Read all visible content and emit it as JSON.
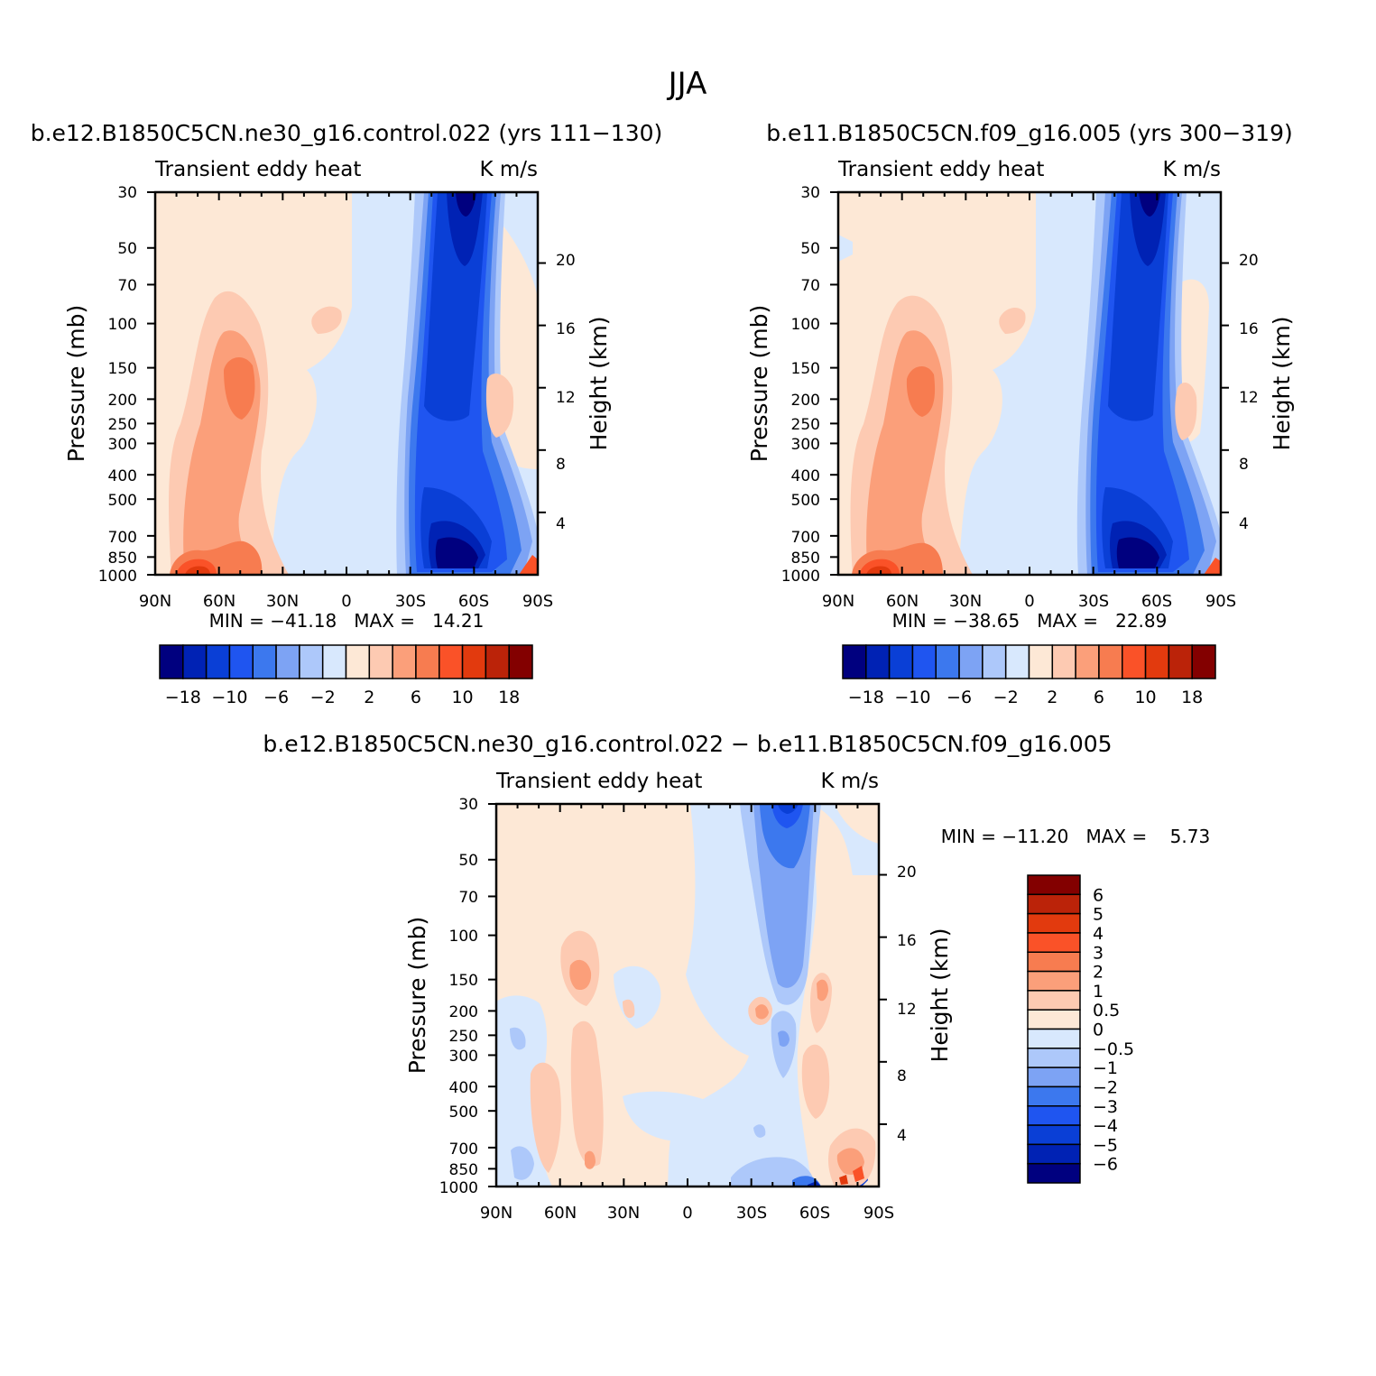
{
  "figure": {
    "title": "JJA"
  },
  "chart_data": [
    {
      "type": "heatmap",
      "title": "b.e12.B1850C5CN.ne30_g16.control.022 (yrs 111-130)",
      "subtitle_left": "Transient eddy heat",
      "subtitle_right": "K m/s",
      "xlabel": "",
      "ylabel": "Pressure (mb)",
      "ylabel_right": "Height (km)",
      "x_ticks": [
        "90N",
        "60N",
        "30N",
        "0",
        "30S",
        "60S",
        "90S"
      ],
      "y_ticks": [
        "30",
        "50",
        "70",
        "100",
        "150",
        "200",
        "250",
        "300",
        "400",
        "500",
        "700",
        "850",
        "1000"
      ],
      "y2_ticks": [
        "4",
        "8",
        "12",
        "16",
        "20"
      ],
      "min_max_text": "MIN = -41.18   MAX =   14.21",
      "min": -41.18,
      "max": 14.21,
      "colorbar_labels": [
        "-18",
        "-10",
        "-6",
        "-2",
        "2",
        "6",
        "10",
        "18"
      ],
      "colorbar_colors": [
        "#00007f",
        "#0022b4",
        "#0a3fd6",
        "#1f55f0",
        "#3c78ee",
        "#7da3f4",
        "#adc8fa",
        "#d8e8fd",
        "#fde8d6",
        "#fdcab2",
        "#fb9f7a",
        "#f77c50",
        "#fa5228",
        "#e23a0e",
        "#bb2309",
        "#830000"
      ]
    },
    {
      "type": "heatmap",
      "title": "b.e11.B1850C5CN.f09_g16.005 (yrs 300-319)",
      "subtitle_left": "Transient eddy heat",
      "subtitle_right": "K m/s",
      "xlabel": "",
      "ylabel": "Pressure (mb)",
      "ylabel_right": "Height (km)",
      "x_ticks": [
        "90N",
        "60N",
        "30N",
        "0",
        "30S",
        "60S",
        "90S"
      ],
      "y_ticks": [
        "30",
        "50",
        "70",
        "100",
        "150",
        "200",
        "250",
        "300",
        "400",
        "500",
        "700",
        "850",
        "1000"
      ],
      "y2_ticks": [
        "4",
        "8",
        "12",
        "16",
        "20"
      ],
      "min_max_text": "MIN = -38.65   MAX =   22.89",
      "min": -38.65,
      "max": 22.89,
      "colorbar_labels": [
        "-18",
        "-10",
        "-6",
        "-2",
        "2",
        "6",
        "10",
        "18"
      ],
      "colorbar_colors": [
        "#00007f",
        "#0022b4",
        "#0a3fd6",
        "#1f55f0",
        "#3c78ee",
        "#7da3f4",
        "#adc8fa",
        "#d8e8fd",
        "#fde8d6",
        "#fdcab2",
        "#fb9f7a",
        "#f77c50",
        "#fa5228",
        "#e23a0e",
        "#bb2309",
        "#830000"
      ]
    },
    {
      "type": "heatmap",
      "title": "b.e12.B1850C5CN.ne30_g16.control.022 - b.e11.B1850C5CN.f09_g16.005",
      "subtitle_left": "Transient eddy heat",
      "subtitle_right": "K m/s",
      "xlabel": "",
      "ylabel": "Pressure (mb)",
      "ylabel_right": "Height (km)",
      "x_ticks": [
        "90N",
        "60N",
        "30N",
        "0",
        "30S",
        "60S",
        "90S"
      ],
      "y_ticks": [
        "30",
        "50",
        "70",
        "100",
        "150",
        "200",
        "250",
        "300",
        "400",
        "500",
        "700",
        "850",
        "1000"
      ],
      "y2_ticks": [
        "4",
        "8",
        "12",
        "16",
        "20"
      ],
      "min_max_text": "MIN = -11.20   MAX =    5.73",
      "min": -11.2,
      "max": 5.73,
      "colorbar_labels": [
        "6",
        "5",
        "4",
        "3",
        "2",
        "1",
        "0.5",
        "0",
        "-0.5",
        "-1",
        "-2",
        "-3",
        "-4",
        "-5",
        "-6"
      ],
      "colorbar_colors": [
        "#830000",
        "#bb2309",
        "#e23a0e",
        "#fa5228",
        "#f77c50",
        "#fb9f7a",
        "#fdcab2",
        "#fde8d6",
        "#d8e8fd",
        "#adc8fa",
        "#7da3f4",
        "#3c78ee",
        "#1f55f0",
        "#0a3fd6",
        "#0022b4",
        "#00007f"
      ]
    }
  ]
}
